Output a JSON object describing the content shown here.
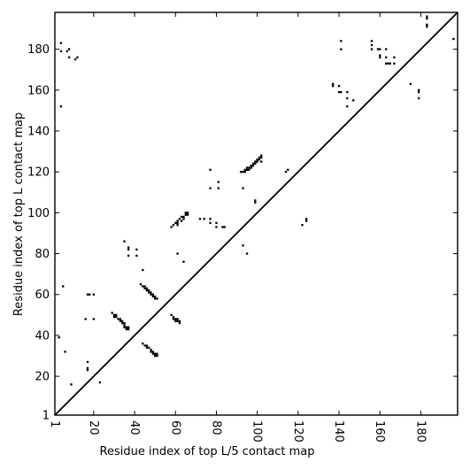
{
  "chart_data": {
    "type": "scatter",
    "xlabel": "Residue index of top L/5 contact map",
    "ylabel": "Residue index of top L contact map",
    "xlim": [
      1,
      198
    ],
    "ylim": [
      1,
      198
    ],
    "xticks": [
      1,
      20,
      40,
      60,
      80,
      100,
      120,
      140,
      160,
      180
    ],
    "yticks": [
      1,
      20,
      40,
      60,
      80,
      100,
      120,
      140,
      160,
      180
    ],
    "diagonal": true,
    "grid": false,
    "legend": "none",
    "marker_color": "#000000",
    "series": [
      {
        "points": [
          [
            4,
            183
          ],
          [
            4,
            179
          ],
          [
            7,
            179
          ],
          [
            8,
            180
          ],
          [
            8,
            176
          ],
          [
            11,
            175
          ],
          [
            12,
            176
          ],
          [
            4,
            152
          ],
          [
            5,
            64
          ],
          [
            3,
            39
          ],
          [
            6,
            32
          ],
          [
            9,
            16
          ],
          [
            17,
            60
          ],
          [
            18,
            60
          ],
          [
            20,
            60
          ],
          [
            16,
            48
          ],
          [
            20,
            48
          ],
          [
            17,
            27
          ],
          [
            17,
            24
          ],
          [
            17,
            23
          ],
          [
            23,
            17
          ],
          [
            29,
            51
          ],
          [
            30,
            50
          ],
          [
            30,
            49
          ],
          [
            31,
            50
          ],
          [
            31,
            49
          ],
          [
            32,
            48
          ],
          [
            33,
            48
          ],
          [
            33,
            47
          ],
          [
            34,
            47
          ],
          [
            34,
            46
          ],
          [
            35,
            46
          ],
          [
            35,
            45
          ],
          [
            35,
            44
          ],
          [
            36,
            44
          ],
          [
            37,
            44
          ],
          [
            36,
            43
          ],
          [
            37,
            43
          ],
          [
            35,
            86
          ],
          [
            37,
            83
          ],
          [
            37,
            82
          ],
          [
            37,
            79
          ],
          [
            41,
            82
          ],
          [
            41,
            79
          ],
          [
            44,
            72
          ],
          [
            43,
            65
          ],
          [
            44,
            64
          ],
          [
            45,
            64
          ],
          [
            45,
            63
          ],
          [
            46,
            63
          ],
          [
            46,
            62
          ],
          [
            47,
            62
          ],
          [
            47,
            61
          ],
          [
            48,
            61
          ],
          [
            48,
            60
          ],
          [
            49,
            60
          ],
          [
            49,
            59
          ],
          [
            50,
            59
          ],
          [
            50,
            58
          ],
          [
            51,
            58
          ],
          [
            44,
            36
          ],
          [
            45,
            35
          ],
          [
            46,
            34
          ],
          [
            46,
            35
          ],
          [
            47,
            34
          ],
          [
            48,
            33
          ],
          [
            48,
            32
          ],
          [
            49,
            32
          ],
          [
            49,
            31
          ],
          [
            50,
            31
          ],
          [
            50,
            30
          ],
          [
            51,
            31
          ],
          [
            51,
            30
          ],
          [
            58,
            50
          ],
          [
            59,
            49
          ],
          [
            59,
            48
          ],
          [
            60,
            48
          ],
          [
            60,
            47
          ],
          [
            61,
            48
          ],
          [
            61,
            47
          ],
          [
            62,
            47
          ],
          [
            62,
            46
          ],
          [
            58,
            93
          ],
          [
            59,
            94
          ],
          [
            60,
            95
          ],
          [
            61,
            94
          ],
          [
            61,
            95
          ],
          [
            61,
            96
          ],
          [
            62,
            97
          ],
          [
            63,
            96
          ],
          [
            63,
            98
          ],
          [
            64,
            97
          ],
          [
            64,
            98
          ],
          [
            65,
            99
          ],
          [
            65,
            100
          ],
          [
            66,
            99
          ],
          [
            66,
            100
          ],
          [
            61,
            80
          ],
          [
            64,
            76
          ],
          [
            72,
            97
          ],
          [
            74,
            97
          ],
          [
            77,
            97
          ],
          [
            77,
            95
          ],
          [
            80,
            95
          ],
          [
            80,
            93
          ],
          [
            83,
            93
          ],
          [
            84,
            93
          ],
          [
            77,
            121
          ],
          [
            77,
            112
          ],
          [
            81,
            115
          ],
          [
            81,
            112
          ],
          [
            92,
            120
          ],
          [
            93,
            120
          ],
          [
            94,
            121
          ],
          [
            94,
            120
          ],
          [
            95,
            121
          ],
          [
            95,
            122
          ],
          [
            96,
            122
          ],
          [
            96,
            121
          ],
          [
            97,
            123
          ],
          [
            97,
            122
          ],
          [
            98,
            124
          ],
          [
            98,
            123
          ],
          [
            99,
            125
          ],
          [
            99,
            124
          ],
          [
            100,
            126
          ],
          [
            100,
            125
          ],
          [
            101,
            127
          ],
          [
            101,
            126
          ],
          [
            102,
            128
          ],
          [
            102,
            127
          ],
          [
            102,
            125
          ],
          [
            99,
            106
          ],
          [
            99,
            105
          ],
          [
            93,
            112
          ],
          [
            93,
            84
          ],
          [
            95,
            80
          ],
          [
            114,
            120
          ],
          [
            115,
            121
          ],
          [
            122,
            94
          ],
          [
            124,
            97
          ],
          [
            124,
            96
          ],
          [
            137,
            163
          ],
          [
            137,
            162
          ],
          [
            140,
            162
          ],
          [
            140,
            159
          ],
          [
            141,
            159
          ],
          [
            141,
            184
          ],
          [
            141,
            180
          ],
          [
            144,
            159
          ],
          [
            144,
            156
          ],
          [
            144,
            152
          ],
          [
            147,
            155
          ],
          [
            156,
            184
          ],
          [
            156,
            182
          ],
          [
            156,
            180
          ],
          [
            159,
            180
          ],
          [
            160,
            180
          ],
          [
            160,
            177
          ],
          [
            160,
            176
          ],
          [
            163,
            180
          ],
          [
            163,
            176
          ],
          [
            163,
            173
          ],
          [
            164,
            173
          ],
          [
            165,
            173
          ],
          [
            167,
            176
          ],
          [
            167,
            173
          ],
          [
            175,
            163
          ],
          [
            179,
            160
          ],
          [
            179,
            159
          ],
          [
            179,
            156
          ],
          [
            183,
            196
          ],
          [
            183,
            195
          ],
          [
            183,
            192
          ],
          [
            183,
            191
          ],
          [
            196,
            185
          ]
        ]
      }
    ]
  }
}
